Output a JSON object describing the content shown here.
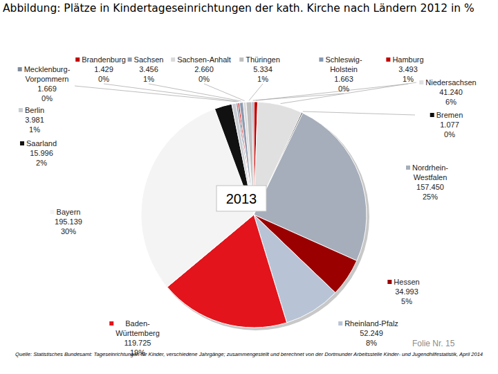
{
  "chart_data": {
    "type": "pie",
    "title": "Abbildung: Plätze in Kindertageseinrichtungen der kath. Kirche nach Ländern 2012 in %",
    "annotation": "2013",
    "footer": "Folie Nr. 15",
    "source": "Quelle: Statistisches Bundesamt: Tageseinrichtungen für Kinder, verschiedene Jahrgänge; zusammengestellt und berechnet von der Dortmunder Arbeitsstelle Kinder- und Jugendhilfestatistik, April 2014",
    "categories": [
      "Hamburg",
      "Niedersachsen",
      "Bremen",
      "Nordrhein-Westfalen",
      "Hessen",
      "Rheinland-Pfalz",
      "Baden-Württemberg",
      "Bayern",
      "Saarland",
      "Berlin",
      "Mecklenburg-Vorpommern",
      "Brandenburg",
      "Sachsen",
      "Sachsen-Anhalt",
      "Thüringen",
      "Schleswig-Holstein"
    ],
    "values": [
      3493,
      41240,
      1077,
      157450,
      34993,
      52249,
      119725,
      195139,
      15996,
      3981,
      1669,
      1429,
      3456,
      2660,
      5334,
      1663
    ],
    "value_labels": [
      "3.493",
      "41.240",
      "1.077",
      "157.450",
      "34.993",
      "52.249",
      "119.725",
      "195.139",
      "15.996",
      "3.981",
      "1.669",
      "1.429",
      "3.456",
      "2.660",
      "5.334",
      "1.663"
    ],
    "percentages": [
      1,
      6,
      0,
      25,
      5,
      8,
      19,
      30,
      2,
      1,
      0,
      0,
      1,
      0,
      1,
      0
    ],
    "percent_labels": [
      "1%",
      "6%",
      "0%",
      "25%",
      "5%",
      "8%",
      "19%",
      "30%",
      "2%",
      "1%",
      "0%",
      "0%",
      "1%",
      "0%",
      "1%",
      "0%"
    ],
    "colors": [
      "#c00000",
      "#e0e0e0",
      "#0d0d0d",
      "#a6aebb",
      "#9b0000",
      "#b8c4d6",
      "#e3141b",
      "#f4f4f4",
      "#111111",
      "#c9ccd1",
      "#7f8c9c",
      "#c00000",
      "#8e9bb0",
      "#d9d9d9",
      "#bfbfbf",
      "#8497b0"
    ],
    "data_labels": true
  }
}
